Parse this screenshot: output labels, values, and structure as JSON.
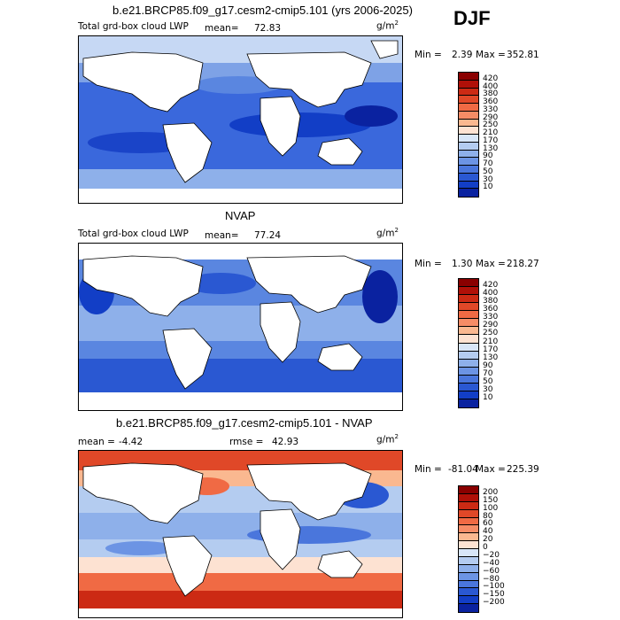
{
  "season": "DJF",
  "panels": [
    {
      "title": "b.e21.BRCP85.f09_g17.cesm2-cmip5.101 (yrs 2006-2025)",
      "variable": "Total grd-box cloud LWP",
      "mean_label": "mean=",
      "mean": "72.83",
      "units": "g/m",
      "units_sup": "2",
      "min_label": "Min =",
      "min": "2.39",
      "max_label": "Max =",
      "max": "352.81",
      "levels": [
        "420",
        "400",
        "380",
        "360",
        "330",
        "290",
        "250",
        "210",
        "170",
        "130",
        "90",
        "70",
        "50",
        "30",
        "10"
      ],
      "colors": [
        "#8a0000",
        "#b01008",
        "#cc2a14",
        "#e04828",
        "#f06a44",
        "#f68c66",
        "#fab890",
        "#fde2d2",
        "#d8e6f8",
        "#b4ccf0",
        "#8eb0ea",
        "#6c94e4",
        "#4a76dc",
        "#2a58d2",
        "#123ec6",
        "#0a22a0"
      ]
    },
    {
      "title": "NVAP",
      "variable": "Total grd-box cloud LWP",
      "mean_label": "mean=",
      "mean": "77.24",
      "units": "g/m",
      "units_sup": "2",
      "min_label": "Min =",
      "min": "1.30",
      "max_label": "Max =",
      "max": "218.27",
      "levels": [
        "420",
        "400",
        "380",
        "360",
        "330",
        "290",
        "250",
        "210",
        "170",
        "130",
        "90",
        "70",
        "50",
        "30",
        "10"
      ],
      "colors": [
        "#8a0000",
        "#b01008",
        "#cc2a14",
        "#e04828",
        "#f06a44",
        "#f68c66",
        "#fab890",
        "#fde2d2",
        "#d8e6f8",
        "#b4ccf0",
        "#8eb0ea",
        "#6c94e4",
        "#4a76dc",
        "#2a58d2",
        "#123ec6",
        "#0a22a0"
      ]
    },
    {
      "title": "b.e21.BRCP85.f09_g17.cesm2-cmip5.101 - NVAP",
      "mean_label": "mean =",
      "mean": "-4.42",
      "rmse_label": "rmse =",
      "rmse": "42.93",
      "units": "g/m",
      "units_sup": "2",
      "min_label": "Min =",
      "min": "-81.04",
      "max_label": "Max =",
      "max": "225.39",
      "levels": [
        "200",
        "150",
        "100",
        "80",
        "60",
        "40",
        "20",
        "0",
        "−20",
        "−40",
        "−60",
        "−80",
        "−100",
        "−150",
        "−200"
      ],
      "colors": [
        "#8a0000",
        "#b01008",
        "#cc2a14",
        "#e04828",
        "#f06a44",
        "#f68c66",
        "#fab890",
        "#fde2d2",
        "#d8e6f8",
        "#b4ccf0",
        "#8eb0ea",
        "#6c94e4",
        "#4a76dc",
        "#2a58d2",
        "#123ec6",
        "#0a22a0"
      ]
    }
  ]
}
